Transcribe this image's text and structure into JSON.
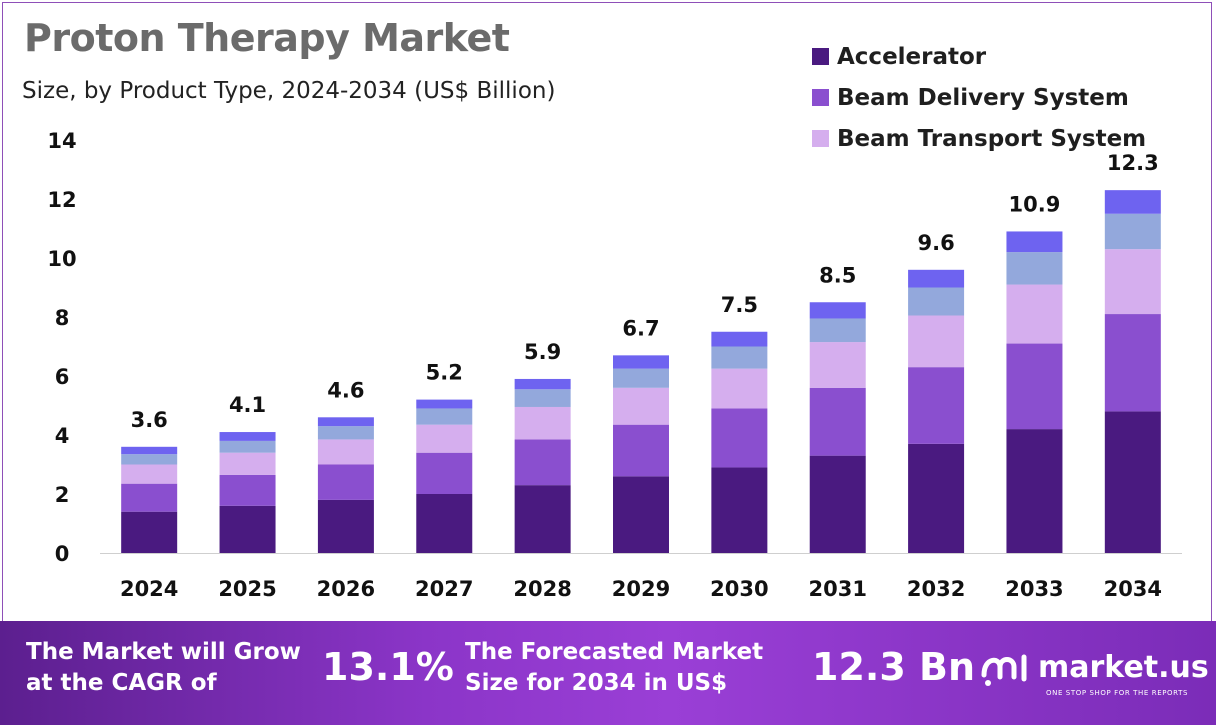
{
  "header": {
    "title": "Proton Therapy Market",
    "subtitle": "Size, by Product Type, 2024-2034 (US$ Billion)"
  },
  "legend": [
    {
      "label": "Accelerator",
      "color": "#4a1a80"
    },
    {
      "label": "Beam Delivery System",
      "color": "#8a4fcf"
    },
    {
      "label": "Beam Transport System",
      "color": "#d5aeee"
    }
  ],
  "chart_data": {
    "type": "bar",
    "stacked": true,
    "categories": [
      "2024",
      "2025",
      "2026",
      "2027",
      "2028",
      "2029",
      "2030",
      "2031",
      "2032",
      "2033",
      "2034"
    ],
    "totals": [
      3.6,
      4.1,
      4.6,
      5.2,
      5.9,
      6.7,
      7.5,
      8.5,
      9.6,
      10.9,
      12.3
    ],
    "total_labels": [
      "3.6",
      "4.1",
      "4.6",
      "5.2",
      "5.9",
      "6.7",
      "7.5",
      "8.5",
      "9.6",
      "10.9",
      "12.3"
    ],
    "series": [
      {
        "name": "Accelerator",
        "color": "#4a1a80",
        "values": [
          1.4,
          1.6,
          1.8,
          2.0,
          2.3,
          2.6,
          2.9,
          3.3,
          3.7,
          4.2,
          4.8
        ]
      },
      {
        "name": "Beam Delivery System",
        "color": "#8a4fcf",
        "values": [
          0.95,
          1.05,
          1.2,
          1.4,
          1.55,
          1.75,
          2.0,
          2.3,
          2.6,
          2.9,
          3.3
        ]
      },
      {
        "name": "Beam Transport System",
        "color": "#d5aeee",
        "values": [
          0.65,
          0.75,
          0.85,
          0.95,
          1.1,
          1.25,
          1.35,
          1.55,
          1.75,
          2.0,
          2.2
        ]
      },
      {
        "color": "#93a8dc",
        "values": [
          0.35,
          0.4,
          0.45,
          0.55,
          0.6,
          0.65,
          0.75,
          0.8,
          0.95,
          1.1,
          1.2
        ]
      },
      {
        "color": "#6e63f0",
        "values": [
          0.25,
          0.3,
          0.3,
          0.3,
          0.35,
          0.45,
          0.5,
          0.55,
          0.6,
          0.7,
          0.8
        ]
      }
    ],
    "yticks": [
      "0",
      "2",
      "4",
      "6",
      "8",
      "10",
      "12",
      "14"
    ],
    "ylim": [
      0,
      14
    ]
  },
  "footer": {
    "cagr_text": "The Market will Grow\nat the CAGR of",
    "cagr_value": "13.1%",
    "forecast_text": "The Forecasted Market\nSize for 2034 in US$",
    "forecast_value": "12.3 Bn",
    "brand": "market.us",
    "tagline": "ONE STOP SHOP FOR THE REPORTS"
  }
}
